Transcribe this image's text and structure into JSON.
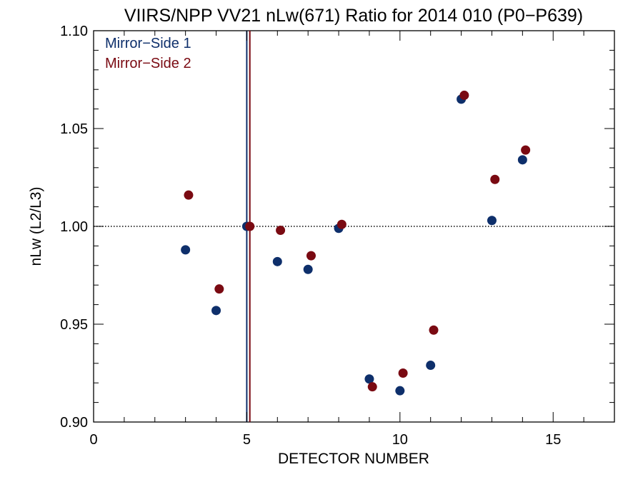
{
  "chart_data": {
    "type": "scatter",
    "title": "VIIRS/NPP VV21 nLw(671) Ratio for 2014 010 (P0−P639)",
    "xlabel": "DETECTOR NUMBER",
    "ylabel": "nLw (L2/L3)",
    "xlim": [
      0,
      17
    ],
    "ylim": [
      0.9,
      1.1
    ],
    "x_ticks": [
      0,
      5,
      10,
      15
    ],
    "x_tick_labels": [
      "0",
      "5",
      "10",
      "15"
    ],
    "y_ticks": [
      0.9,
      0.95,
      1.0,
      1.05,
      1.1
    ],
    "y_tick_labels": [
      "0.90",
      "0.95",
      "1.00",
      "1.05",
      "1.10"
    ],
    "reference_line": {
      "y": 1.0,
      "style": "dotted"
    },
    "vertical_lines": [
      {
        "x": 5.0,
        "series": "Mirror−Side 1"
      },
      {
        "x": 5.1,
        "series": "Mirror−Side 2"
      }
    ],
    "legend_position": "top-left",
    "series": [
      {
        "name": "Mirror−Side 1",
        "color": "#0e2f6b",
        "x": [
          3,
          4,
          5,
          6,
          7,
          8,
          9,
          10,
          11,
          12,
          13,
          14
        ],
        "y": [
          0.988,
          0.957,
          1.0,
          0.982,
          0.978,
          0.999,
          0.922,
          0.916,
          0.929,
          1.065,
          1.003,
          1.034
        ]
      },
      {
        "name": "Mirror−Side 2",
        "color": "#7a0a12",
        "x": [
          3.1,
          4.1,
          5.1,
          6.1,
          7.1,
          8.1,
          9.1,
          10.1,
          11.1,
          12.1,
          13.1,
          14.1
        ],
        "y": [
          1.016,
          0.968,
          1.0,
          0.998,
          0.985,
          1.001,
          0.918,
          0.925,
          0.947,
          1.067,
          1.024,
          1.039
        ]
      }
    ]
  }
}
